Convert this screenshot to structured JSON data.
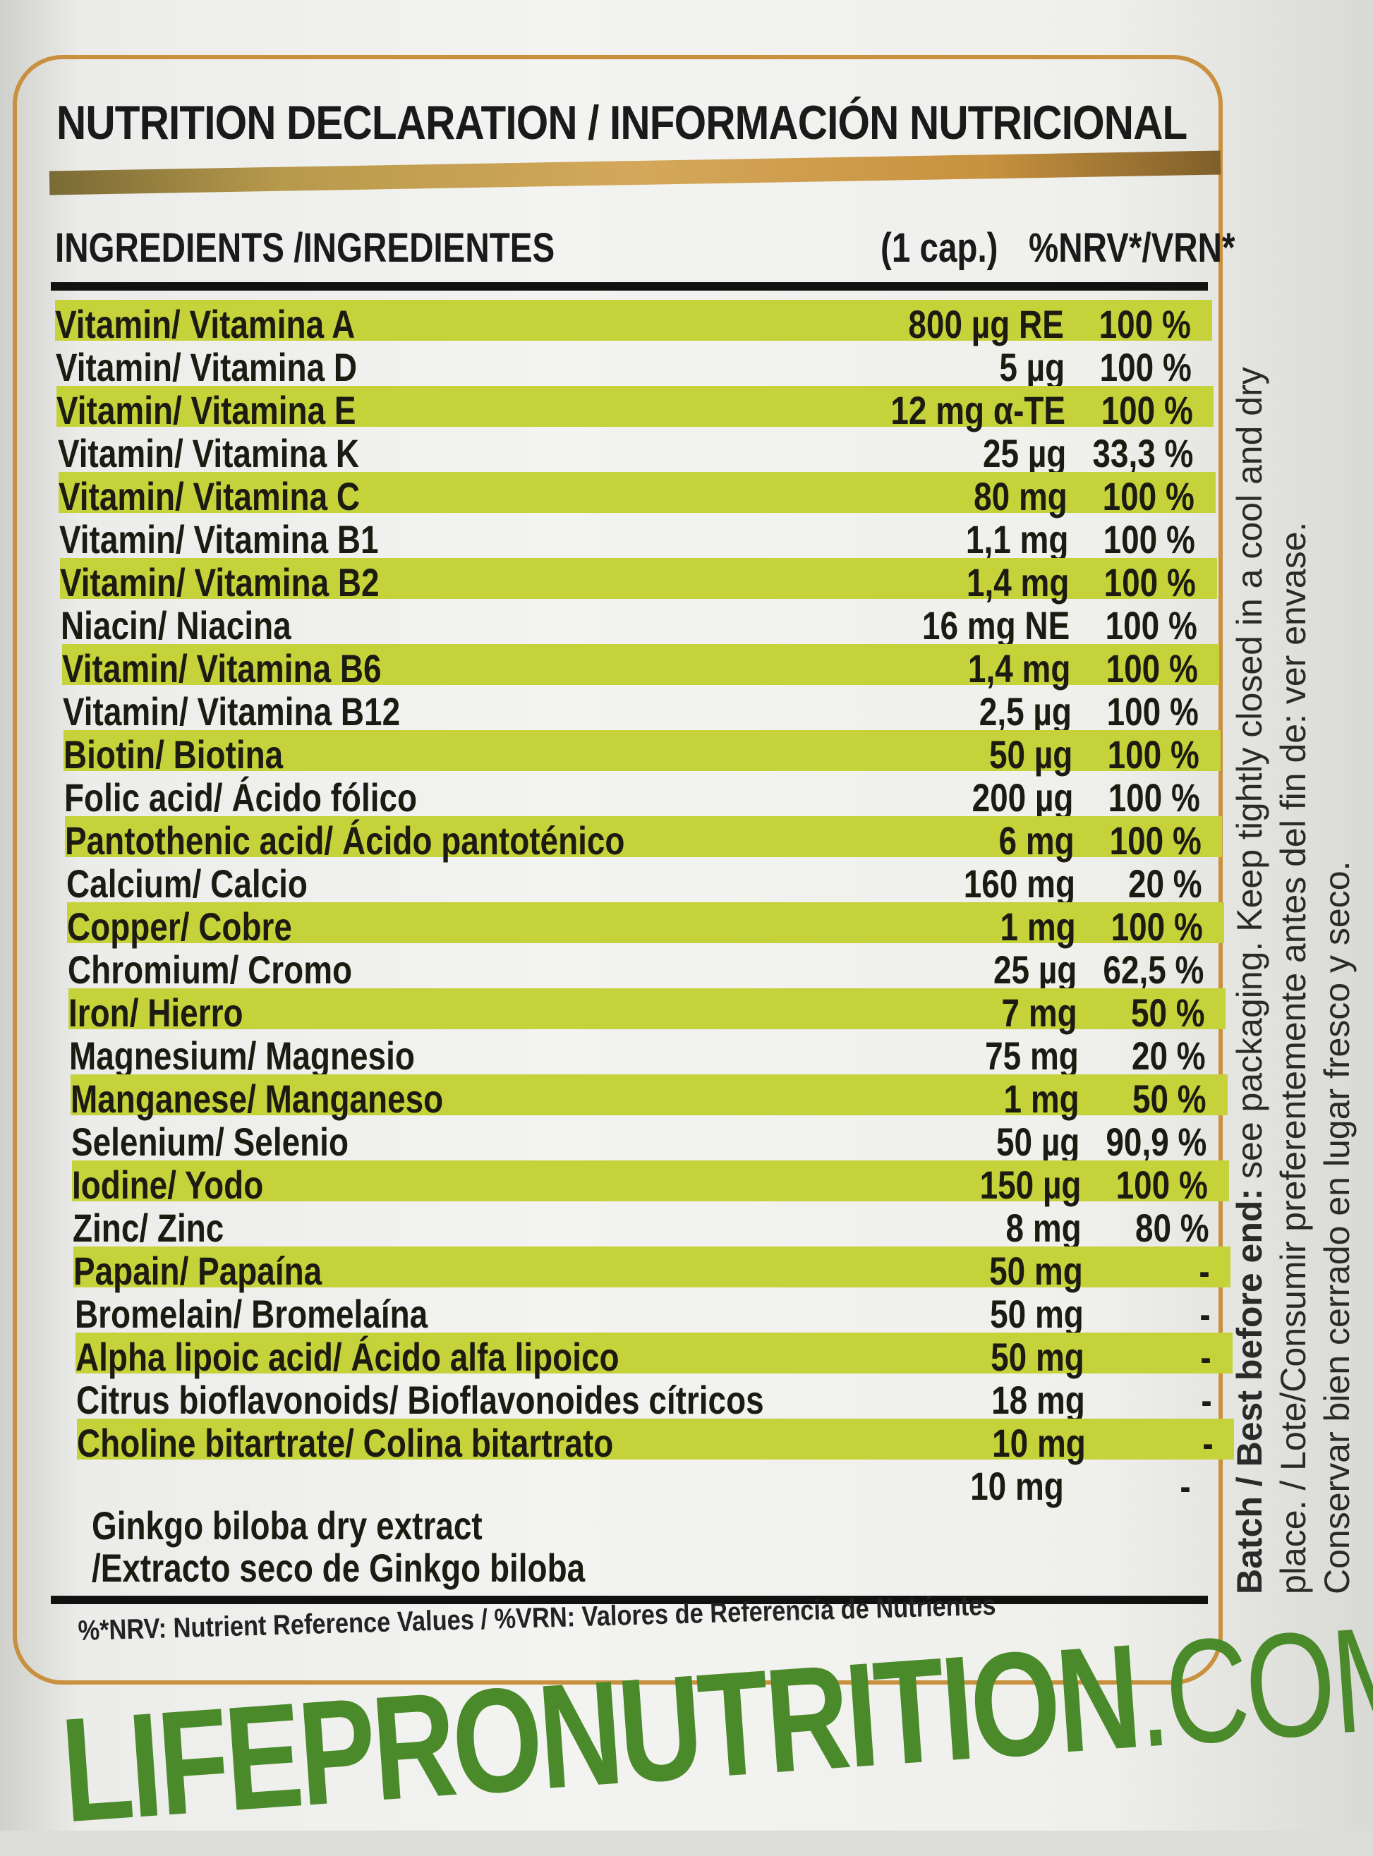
{
  "title": "NUTRITION DECLARATION / INFORMACIÓN NUTRICIONAL",
  "headers": {
    "ingredients": "INGREDIENTS /INGREDIENTES",
    "amount": "(1 cap.)",
    "nrv": "%NRV*/VRN*"
  },
  "rows": [
    {
      "name": "Vitamin/ Vitamina A",
      "amount": "800 µg RE",
      "nrv": "100 %"
    },
    {
      "name": "Vitamin/ Vitamina D",
      "amount": "5 µg",
      "nrv": "100 %"
    },
    {
      "name": "Vitamin/ Vitamina E",
      "amount": "12 mg α-TE",
      "nrv": "100 %"
    },
    {
      "name": "Vitamin/ Vitamina K",
      "amount": "25 µg",
      "nrv": "33,3 %"
    },
    {
      "name": "Vitamin/ Vitamina C",
      "amount": "80 mg",
      "nrv": "100 %"
    },
    {
      "name": "Vitamin/ Vitamina B1",
      "amount": "1,1 mg",
      "nrv": "100 %"
    },
    {
      "name": "Vitamin/ Vitamina B2",
      "amount": "1,4 mg",
      "nrv": "100 %"
    },
    {
      "name": "Niacin/ Niacina",
      "amount": "16 mg NE",
      "nrv": "100 %"
    },
    {
      "name": "Vitamin/ Vitamina B6",
      "amount": "1,4 mg",
      "nrv": "100 %"
    },
    {
      "name": "Vitamin/ Vitamina B12",
      "amount": "2,5 µg",
      "nrv": "100 %"
    },
    {
      "name": "Biotin/ Biotina",
      "amount": "50 µg",
      "nrv": "100 %"
    },
    {
      "name": "Folic acid/ Ácido fólico",
      "amount": "200 µg",
      "nrv": "100 %"
    },
    {
      "name": "Pantothenic acid/ Ácido pantoténico",
      "amount": "6 mg",
      "nrv": "100 %"
    },
    {
      "name": "Calcium/ Calcio",
      "amount": "160 mg",
      "nrv": "20 %"
    },
    {
      "name": "Copper/ Cobre",
      "amount": "1 mg",
      "nrv": "100 %"
    },
    {
      "name": "Chromium/ Cromo",
      "amount": "25 µg",
      "nrv": "62,5 %"
    },
    {
      "name": "Iron/ Hierro",
      "amount": "7 mg",
      "nrv": "50 %"
    },
    {
      "name": "Magnesium/ Magnesio",
      "amount": "75 mg",
      "nrv": "20 %"
    },
    {
      "name": "Manganese/ Manganeso",
      "amount": "1 mg",
      "nrv": "50 %"
    },
    {
      "name": "Selenium/ Selenio",
      "amount": "50 µg",
      "nrv": "90,9 %"
    },
    {
      "name": "Iodine/ Yodo",
      "amount": "150 µg",
      "nrv": "100 %"
    },
    {
      "name": "Zinc/ Zinc",
      "amount": "8 mg",
      "nrv": "80 %"
    },
    {
      "name": "Papain/ Papaína",
      "amount": "50 mg",
      "nrv": "-"
    },
    {
      "name": "Bromelain/ Bromelaína",
      "amount": "50 mg",
      "nrv": "-"
    },
    {
      "name": "Alpha lipoic acid/ Ácido alfa lipoico",
      "amount": "50 mg",
      "nrv": "-"
    },
    {
      "name": "Citrus bioflavonoids/ Bioflavonoides cítricos",
      "amount": "18 mg",
      "nrv": "-"
    },
    {
      "name": "Choline bitartrate/ Colina bitartrato",
      "amount": "10 mg",
      "nrv": "-"
    }
  ],
  "ginkgo": {
    "line1": "Ginkgo biloba dry extract",
    "line2": "/Extracto seco de Ginkgo biloba",
    "amount": "10 mg",
    "nrv": "-"
  },
  "footnote": "%*NRV: Nutrient Reference Values / %VRN: Valores de Referencia de Nutrientes",
  "side_text": {
    "line1_bold": "Batch / Best before end:",
    "line1": "see packaging. Keep tightly closed in a cool and dry",
    "line2": "place. / Lote/Consumir preferentemente antes del fin de: ver envase.",
    "line3": "Conservar bien cerrado en lugar fresco y seco."
  },
  "brand": {
    "name": "LIFEPRONUTRITION",
    "suffix": ".COM"
  },
  "colors": {
    "highlight": "#c6d23a",
    "gold_border": "#c9903e",
    "brand_green": "#4b8a2a"
  }
}
